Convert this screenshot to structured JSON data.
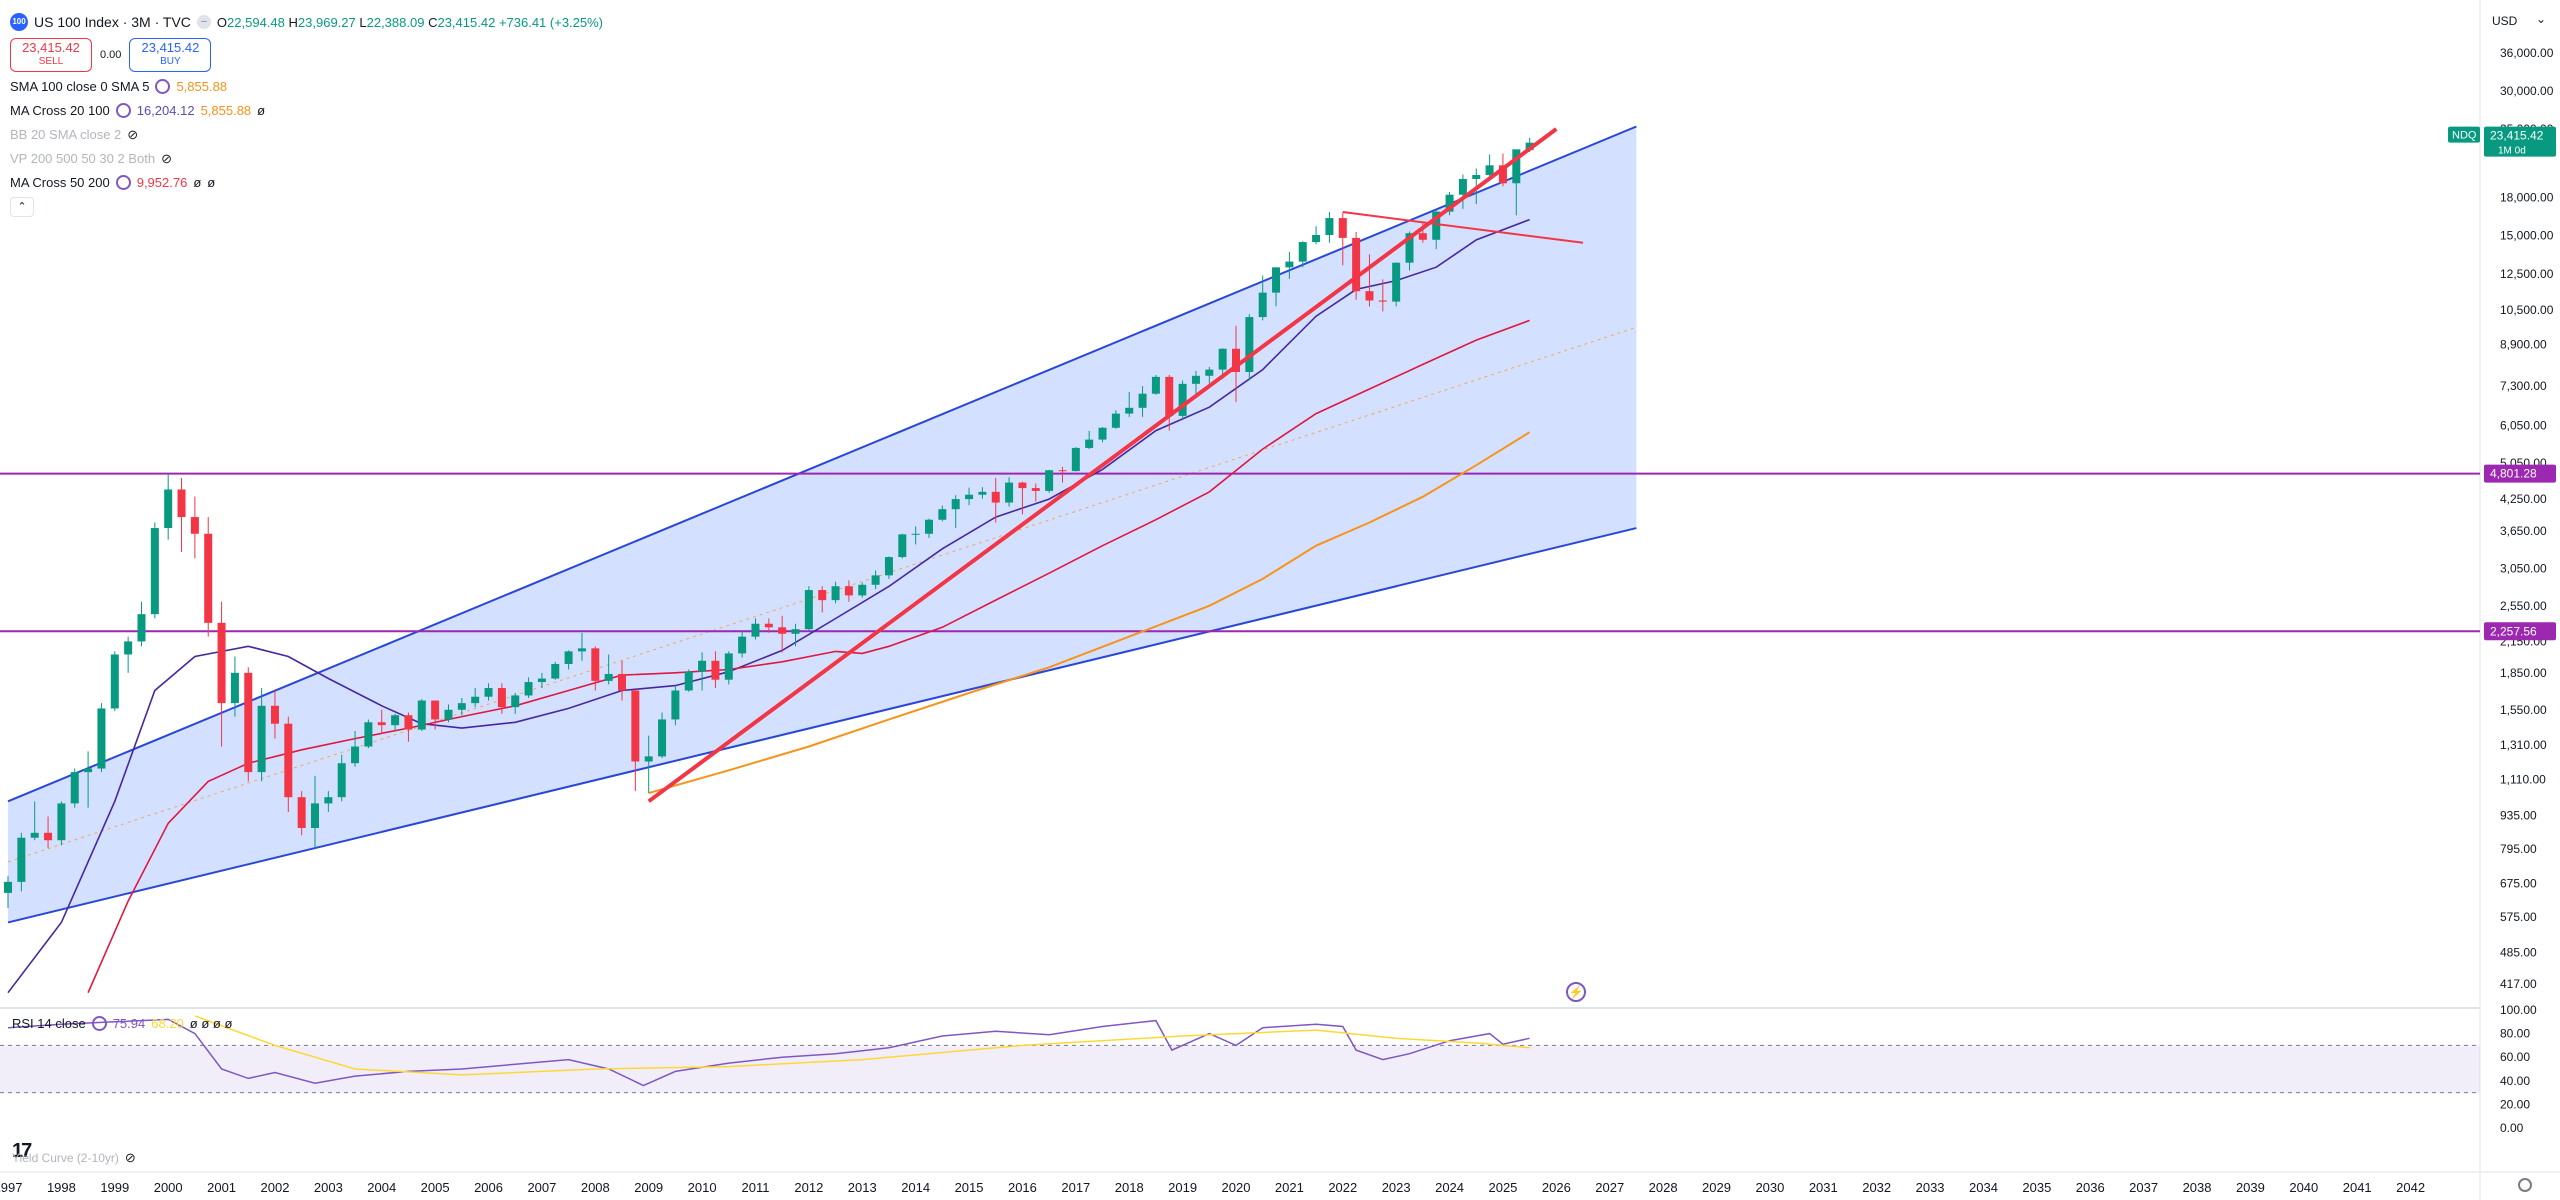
{
  "symbol": {
    "logo": "100",
    "title": "US 100 Index · 3M · TVC",
    "open_label": "O",
    "open": "22,594.48",
    "high_label": "H",
    "high": "23,969.27",
    "low_label": "L",
    "low": "22,388.09",
    "close_label": "C",
    "close": "23,415.42",
    "change": "+736.41 (+3.25%)"
  },
  "trade": {
    "sell_price": "23,415.42",
    "sell_label": "SELL",
    "spread": "0.00",
    "buy_price": "23,415.42",
    "buy_label": "BUY"
  },
  "indicators": [
    {
      "name": "SMA 100 close 0 SMA 5",
      "values": [
        "5,855.88"
      ],
      "colors": [
        "#f7931a"
      ]
    },
    {
      "name": "MA Cross 20 100",
      "values": [
        "16,204.12",
        "5,855.88",
        "ø"
      ],
      "colors": [
        "#5b4bb7",
        "#f7931a",
        "#131722"
      ]
    },
    {
      "name": "BB 20 SMA close 2",
      "values": [],
      "colors": [],
      "hidden": true
    },
    {
      "name": "VP 200 500 50 30 2 Both",
      "values": [],
      "colors": [],
      "hidden": true
    },
    {
      "name": "MA Cross 50 200",
      "values": [
        "9,952.76",
        "ø",
        "ø"
      ],
      "colors": [
        "#f23645",
        "#131722",
        "#131722"
      ]
    }
  ],
  "rsi": {
    "label": "RSI 14 close",
    "value1": "75.94",
    "value2": "68.20",
    "rest": "ø ø ø ø"
  },
  "yield": {
    "label": "Yield Curve (2-10yr)"
  },
  "currency": "USD",
  "price_axis": [
    {
      "label": "36,000.00",
      "y": 36000
    },
    {
      "label": "30,000.00",
      "y": 30000
    },
    {
      "label": "25,000.00",
      "y": 25000
    },
    {
      "label": "18,000.00",
      "y": 18000
    },
    {
      "label": "15,000.00",
      "y": 15000
    },
    {
      "label": "12,500.00",
      "y": 12500
    },
    {
      "label": "10,500.00",
      "y": 10500
    },
    {
      "label": "8,900.00",
      "y": 8900
    },
    {
      "label": "7,300.00",
      "y": 7300
    },
    {
      "label": "6,050.00",
      "y": 6050
    },
    {
      "label": "5,050.00",
      "y": 5050
    },
    {
      "label": "4,250.00",
      "y": 4250
    },
    {
      "label": "3,650.00",
      "y": 3650
    },
    {
      "label": "3,050.00",
      "y": 3050
    },
    {
      "label": "2,550.00",
      "y": 2550
    },
    {
      "label": "2,150.00",
      "y": 2150
    },
    {
      "label": "1,850.00",
      "y": 1850
    },
    {
      "label": "1,550.00",
      "y": 1550
    },
    {
      "label": "1,310.00",
      "y": 1310
    },
    {
      "label": "1,110.00",
      "y": 1110
    },
    {
      "label": "935.00",
      "y": 935
    },
    {
      "label": "795.00",
      "y": 795
    },
    {
      "label": "675.00",
      "y": 675
    },
    {
      "label": "575.00",
      "y": 575
    },
    {
      "label": "485.00",
      "y": 485
    },
    {
      "label": "417.00",
      "y": 417
    }
  ],
  "price_tags": [
    {
      "label": "23,415.42",
      "sub": "1M 0d",
      "y": 23415,
      "color": "#089981",
      "symbol": "NDQ"
    },
    {
      "label": "4,801.28",
      "y": 4801,
      "color": "#9c27b0"
    },
    {
      "label": "2,257.56",
      "y": 2257,
      "color": "#9c27b0"
    }
  ],
  "rsi_axis": [
    {
      "label": "100.00",
      "y": 100
    },
    {
      "label": "80.00",
      "y": 80
    },
    {
      "label": "60.00",
      "y": 60
    },
    {
      "label": "40.00",
      "y": 40
    },
    {
      "label": "20.00",
      "y": 20
    },
    {
      "label": "0.00",
      "y": 0
    }
  ],
  "time_axis": [
    "1997",
    "1998",
    "1999",
    "2000",
    "2001",
    "2002",
    "2003",
    "2004",
    "2005",
    "2006",
    "2007",
    "2008",
    "2009",
    "2010",
    "2011",
    "2012",
    "2013",
    "2014",
    "2015",
    "2016",
    "2017",
    "2018",
    "2019",
    "2020",
    "2021",
    "2022",
    "2023",
    "2024",
    "2025",
    "2026",
    "2027",
    "2028",
    "2029",
    "2030",
    "2031",
    "2032",
    "2033",
    "2034",
    "2035",
    "2036",
    "2037",
    "2038",
    "2039",
    "2040",
    "2041",
    "2042"
  ],
  "chart_data": {
    "type": "candlestick",
    "scale": "log",
    "ylim": [
      390,
      40000
    ],
    "xlim": [
      1996.85,
      2043.3
    ],
    "candles": [
      {
        "t": 1997.0,
        "o": 645,
        "h": 700,
        "l": 600,
        "c": 680
      },
      {
        "t": 1997.25,
        "o": 680,
        "h": 860,
        "l": 650,
        "c": 840
      },
      {
        "t": 1997.5,
        "o": 840,
        "h": 1000,
        "l": 830,
        "c": 860
      },
      {
        "t": 1997.75,
        "o": 860,
        "h": 930,
        "l": 800,
        "c": 830
      },
      {
        "t": 1998.0,
        "o": 830,
        "h": 1000,
        "l": 810,
        "c": 990
      },
      {
        "t": 1998.25,
        "o": 990,
        "h": 1170,
        "l": 970,
        "c": 1150
      },
      {
        "t": 1998.5,
        "o": 1150,
        "h": 1270,
        "l": 970,
        "c": 1170
      },
      {
        "t": 1998.75,
        "o": 1170,
        "h": 1600,
        "l": 1150,
        "c": 1560
      },
      {
        "t": 1999.0,
        "o": 1560,
        "h": 2050,
        "l": 1540,
        "c": 2020
      },
      {
        "t": 1999.25,
        "o": 2020,
        "h": 2200,
        "l": 1850,
        "c": 2150
      },
      {
        "t": 1999.5,
        "o": 2150,
        "h": 2600,
        "l": 2100,
        "c": 2450
      },
      {
        "t": 1999.75,
        "o": 2450,
        "h": 3800,
        "l": 2400,
        "c": 3700
      },
      {
        "t": 2000.0,
        "o": 3700,
        "h": 4800,
        "l": 3500,
        "c": 4450
      },
      {
        "t": 2000.25,
        "o": 4450,
        "h": 4700,
        "l": 3300,
        "c": 3900
      },
      {
        "t": 2000.5,
        "o": 3900,
        "h": 4300,
        "l": 3200,
        "c": 3600
      },
      {
        "t": 2000.75,
        "o": 3600,
        "h": 3900,
        "l": 2200,
        "c": 2350
      },
      {
        "t": 2001.0,
        "o": 2350,
        "h": 2600,
        "l": 1300,
        "c": 1600
      },
      {
        "t": 2001.25,
        "o": 1600,
        "h": 2000,
        "l": 1500,
        "c": 1850
      },
      {
        "t": 2001.5,
        "o": 1850,
        "h": 1900,
        "l": 1100,
        "c": 1150
      },
      {
        "t": 2001.75,
        "o": 1150,
        "h": 1720,
        "l": 1100,
        "c": 1580
      },
      {
        "t": 2002.0,
        "o": 1580,
        "h": 1700,
        "l": 1350,
        "c": 1450
      },
      {
        "t": 2002.25,
        "o": 1450,
        "h": 1500,
        "l": 950,
        "c": 1020
      },
      {
        "t": 2002.5,
        "o": 1020,
        "h": 1050,
        "l": 850,
        "c": 880
      },
      {
        "t": 2002.75,
        "o": 880,
        "h": 1130,
        "l": 800,
        "c": 990
      },
      {
        "t": 2003.0,
        "o": 990,
        "h": 1050,
        "l": 950,
        "c": 1020
      },
      {
        "t": 2003.25,
        "o": 1020,
        "h": 1250,
        "l": 1000,
        "c": 1200
      },
      {
        "t": 2003.5,
        "o": 1200,
        "h": 1400,
        "l": 1180,
        "c": 1300
      },
      {
        "t": 2003.75,
        "o": 1300,
        "h": 1480,
        "l": 1290,
        "c": 1460
      },
      {
        "t": 2004.0,
        "o": 1460,
        "h": 1550,
        "l": 1380,
        "c": 1440
      },
      {
        "t": 2004.25,
        "o": 1440,
        "h": 1520,
        "l": 1400,
        "c": 1510
      },
      {
        "t": 2004.5,
        "o": 1510,
        "h": 1530,
        "l": 1330,
        "c": 1410
      },
      {
        "t": 2004.75,
        "o": 1410,
        "h": 1630,
        "l": 1400,
        "c": 1620
      },
      {
        "t": 2005.0,
        "o": 1620,
        "h": 1620,
        "l": 1410,
        "c": 1480
      },
      {
        "t": 2005.25,
        "o": 1480,
        "h": 1590,
        "l": 1460,
        "c": 1550
      },
      {
        "t": 2005.5,
        "o": 1550,
        "h": 1640,
        "l": 1510,
        "c": 1600
      },
      {
        "t": 2005.75,
        "o": 1600,
        "h": 1720,
        "l": 1570,
        "c": 1650
      },
      {
        "t": 2006.0,
        "o": 1650,
        "h": 1760,
        "l": 1620,
        "c": 1720
      },
      {
        "t": 2006.25,
        "o": 1720,
        "h": 1760,
        "l": 1520,
        "c": 1570
      },
      {
        "t": 2006.5,
        "o": 1570,
        "h": 1680,
        "l": 1520,
        "c": 1660
      },
      {
        "t": 2006.75,
        "o": 1660,
        "h": 1810,
        "l": 1640,
        "c": 1770
      },
      {
        "t": 2007.0,
        "o": 1770,
        "h": 1850,
        "l": 1720,
        "c": 1800
      },
      {
        "t": 2007.25,
        "o": 1800,
        "h": 1950,
        "l": 1790,
        "c": 1930
      },
      {
        "t": 2007.5,
        "o": 1930,
        "h": 2060,
        "l": 1880,
        "c": 2050
      },
      {
        "t": 2007.75,
        "o": 2050,
        "h": 2240,
        "l": 1960,
        "c": 2080
      },
      {
        "t": 2008.0,
        "o": 2080,
        "h": 2100,
        "l": 1700,
        "c": 1780
      },
      {
        "t": 2008.25,
        "o": 1780,
        "h": 2020,
        "l": 1750,
        "c": 1840
      },
      {
        "t": 2008.5,
        "o": 1840,
        "h": 1960,
        "l": 1620,
        "c": 1700
      },
      {
        "t": 2008.75,
        "o": 1700,
        "h": 1720,
        "l": 1050,
        "c": 1210
      },
      {
        "t": 2009.0,
        "o": 1210,
        "h": 1370,
        "l": 1040,
        "c": 1240
      },
      {
        "t": 2009.25,
        "o": 1240,
        "h": 1530,
        "l": 1230,
        "c": 1480
      },
      {
        "t": 2009.5,
        "o": 1480,
        "h": 1740,
        "l": 1440,
        "c": 1700
      },
      {
        "t": 2009.75,
        "o": 1700,
        "h": 1880,
        "l": 1690,
        "c": 1860
      },
      {
        "t": 2010.0,
        "o": 1860,
        "h": 2040,
        "l": 1700,
        "c": 1960
      },
      {
        "t": 2010.25,
        "o": 1960,
        "h": 2050,
        "l": 1720,
        "c": 1790
      },
      {
        "t": 2010.5,
        "o": 1790,
        "h": 2050,
        "l": 1750,
        "c": 2030
      },
      {
        "t": 2010.75,
        "o": 2030,
        "h": 2260,
        "l": 1990,
        "c": 2200
      },
      {
        "t": 2011.0,
        "o": 2200,
        "h": 2400,
        "l": 2170,
        "c": 2340
      },
      {
        "t": 2011.25,
        "o": 2340,
        "h": 2400,
        "l": 2240,
        "c": 2300
      },
      {
        "t": 2011.5,
        "o": 2300,
        "h": 2430,
        "l": 2040,
        "c": 2230
      },
      {
        "t": 2011.75,
        "o": 2230,
        "h": 2340,
        "l": 2100,
        "c": 2280
      },
      {
        "t": 2012.0,
        "o": 2280,
        "h": 2800,
        "l": 2270,
        "c": 2750
      },
      {
        "t": 2012.25,
        "o": 2750,
        "h": 2800,
        "l": 2470,
        "c": 2620
      },
      {
        "t": 2012.5,
        "o": 2620,
        "h": 2860,
        "l": 2580,
        "c": 2800
      },
      {
        "t": 2012.75,
        "o": 2800,
        "h": 2880,
        "l": 2600,
        "c": 2680
      },
      {
        "t": 2013.0,
        "o": 2680,
        "h": 2850,
        "l": 2650,
        "c": 2820
      },
      {
        "t": 2013.25,
        "o": 2820,
        "h": 3020,
        "l": 2760,
        "c": 2950
      },
      {
        "t": 2013.5,
        "o": 2950,
        "h": 3230,
        "l": 2900,
        "c": 3220
      },
      {
        "t": 2013.75,
        "o": 3220,
        "h": 3600,
        "l": 3200,
        "c": 3590
      },
      {
        "t": 2014.0,
        "o": 3590,
        "h": 3730,
        "l": 3420,
        "c": 3600
      },
      {
        "t": 2014.25,
        "o": 3600,
        "h": 3870,
        "l": 3530,
        "c": 3850
      },
      {
        "t": 2014.5,
        "o": 3850,
        "h": 4120,
        "l": 3820,
        "c": 4050
      },
      {
        "t": 2014.75,
        "o": 4050,
        "h": 4330,
        "l": 3700,
        "c": 4250
      },
      {
        "t": 2015.0,
        "o": 4250,
        "h": 4490,
        "l": 4130,
        "c": 4340
      },
      {
        "t": 2015.25,
        "o": 4340,
        "h": 4500,
        "l": 4260,
        "c": 4400
      },
      {
        "t": 2015.5,
        "o": 4400,
        "h": 4700,
        "l": 3800,
        "c": 4180
      },
      {
        "t": 2015.75,
        "o": 4180,
        "h": 4720,
        "l": 4100,
        "c": 4600
      },
      {
        "t": 2016.0,
        "o": 4600,
        "h": 4620,
        "l": 3950,
        "c": 4480
      },
      {
        "t": 2016.25,
        "o": 4480,
        "h": 4580,
        "l": 4200,
        "c": 4420
      },
      {
        "t": 2016.5,
        "o": 4420,
        "h": 4890,
        "l": 4380,
        "c": 4880
      },
      {
        "t": 2016.75,
        "o": 4880,
        "h": 4960,
        "l": 4600,
        "c": 4860
      },
      {
        "t": 2017.0,
        "o": 4860,
        "h": 5450,
        "l": 4850,
        "c": 5430
      },
      {
        "t": 2017.25,
        "o": 5430,
        "h": 5890,
        "l": 5400,
        "c": 5650
      },
      {
        "t": 2017.5,
        "o": 5650,
        "h": 6000,
        "l": 5580,
        "c": 5980
      },
      {
        "t": 2017.75,
        "o": 5980,
        "h": 6500,
        "l": 5950,
        "c": 6400
      },
      {
        "t": 2018.0,
        "o": 6400,
        "h": 7100,
        "l": 6300,
        "c": 6580
      },
      {
        "t": 2018.25,
        "o": 6580,
        "h": 7300,
        "l": 6300,
        "c": 7040
      },
      {
        "t": 2018.5,
        "o": 7040,
        "h": 7700,
        "l": 7000,
        "c": 7630
      },
      {
        "t": 2018.75,
        "o": 7630,
        "h": 7700,
        "l": 5900,
        "c": 6330
      },
      {
        "t": 2019.0,
        "o": 6330,
        "h": 7500,
        "l": 6200,
        "c": 7380
      },
      {
        "t": 2019.25,
        "o": 7380,
        "h": 7850,
        "l": 6900,
        "c": 7670
      },
      {
        "t": 2019.5,
        "o": 7670,
        "h": 8000,
        "l": 7400,
        "c": 7900
      },
      {
        "t": 2019.75,
        "o": 7900,
        "h": 8750,
        "l": 7550,
        "c": 8730
      },
      {
        "t": 2020.0,
        "o": 8730,
        "h": 9740,
        "l": 6770,
        "c": 7810
      },
      {
        "t": 2020.25,
        "o": 7810,
        "h": 10300,
        "l": 7500,
        "c": 10160
      },
      {
        "t": 2020.5,
        "o": 10160,
        "h": 12400,
        "l": 10000,
        "c": 11420
      },
      {
        "t": 2020.75,
        "o": 11420,
        "h": 12900,
        "l": 10700,
        "c": 12890
      },
      {
        "t": 2021.0,
        "o": 12890,
        "h": 13880,
        "l": 12200,
        "c": 13250
      },
      {
        "t": 2021.25,
        "o": 13250,
        "h": 14600,
        "l": 12900,
        "c": 14550
      },
      {
        "t": 2021.5,
        "o": 14550,
        "h": 15700,
        "l": 14400,
        "c": 15050
      },
      {
        "t": 2021.75,
        "o": 15050,
        "h": 16800,
        "l": 14500,
        "c": 16320
      },
      {
        "t": 2022.0,
        "o": 16320,
        "h": 16770,
        "l": 13020,
        "c": 14840
      },
      {
        "t": 2022.25,
        "o": 14840,
        "h": 15270,
        "l": 11040,
        "c": 11500
      },
      {
        "t": 2022.5,
        "o": 11500,
        "h": 13720,
        "l": 10690,
        "c": 11000
      },
      {
        "t": 2022.75,
        "o": 11000,
        "h": 12170,
        "l": 10440,
        "c": 10940
      },
      {
        "t": 2023.0,
        "o": 10940,
        "h": 13200,
        "l": 10700,
        "c": 13180
      },
      {
        "t": 2023.25,
        "o": 13180,
        "h": 15300,
        "l": 12700,
        "c": 15180
      },
      {
        "t": 2023.5,
        "o": 15180,
        "h": 15930,
        "l": 14500,
        "c": 14710
      },
      {
        "t": 2023.75,
        "o": 14710,
        "h": 17000,
        "l": 14060,
        "c": 16830
      },
      {
        "t": 2024.0,
        "o": 16830,
        "h": 18500,
        "l": 16540,
        "c": 18250
      },
      {
        "t": 2024.25,
        "o": 18250,
        "h": 20100,
        "l": 17060,
        "c": 19680
      },
      {
        "t": 2024.5,
        "o": 19680,
        "h": 20690,
        "l": 17450,
        "c": 20060
      },
      {
        "t": 2024.75,
        "o": 20060,
        "h": 22130,
        "l": 19860,
        "c": 21010
      },
      {
        "t": 2025.0,
        "o": 21010,
        "h": 22220,
        "l": 19000,
        "c": 19280
      },
      {
        "t": 2025.25,
        "o": 19280,
        "h": 22680,
        "l": 16540,
        "c": 22680
      },
      {
        "t": 2025.5,
        "o": 22594,
        "h": 23969,
        "l": 22388,
        "c": 23415
      }
    ]
  }
}
